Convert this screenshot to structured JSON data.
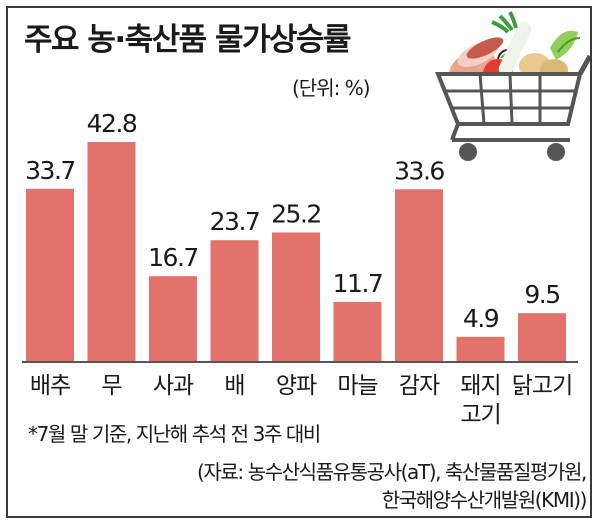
{
  "title": "주요 농·축산품 물가상승률",
  "unit": "(단위: %)",
  "footnote": "*7월 말 기준, 지난해 추석 전 3주 대비",
  "source_line1": "(자료: 농수산식품유통공사(aT), 축산물품질평가원,",
  "source_line2": "한국해양수산개발원(KMI))",
  "colors": {
    "bar": "#e2726b",
    "text": "#1a1a1a",
    "axis": "#555555"
  },
  "chart_data": {
    "type": "bar",
    "title": "주요 농·축산품 물가상승률",
    "xlabel": "",
    "ylabel": "",
    "unit": "%",
    "ylim": [
      0,
      48
    ],
    "grid": false,
    "categories": [
      "배추",
      "무",
      "사과",
      "배",
      "양파",
      "마늘",
      "감자",
      "돼지고기",
      "닭고기"
    ],
    "values": [
      33.7,
      42.8,
      16.7,
      23.7,
      25.2,
      11.7,
      33.6,
      4.9,
      9.5
    ],
    "labels": [
      "33.7",
      "42.8",
      "16.7",
      "23.7",
      "25.2",
      "11.7",
      "33.6",
      "4.9",
      "9.5"
    ]
  }
}
